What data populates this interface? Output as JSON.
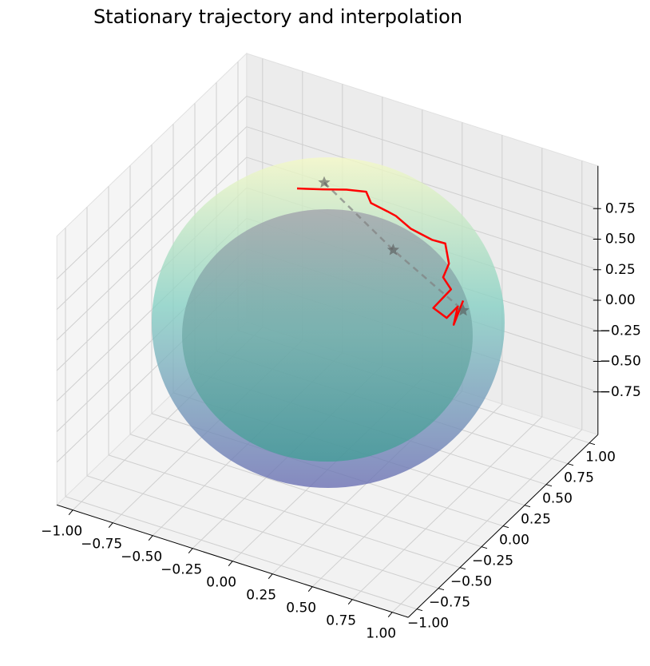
{
  "chart_data": {
    "type": "line3d",
    "title": "Stationary trajectory and interpolation",
    "xlim": [
      -1.1,
      1.1
    ],
    "ylim": [
      -1.1,
      1.1
    ],
    "zlim": [
      -1.1,
      1.1
    ],
    "xticks": [
      {
        "value": -1,
        "label": "−1.00"
      },
      {
        "value": -0.75,
        "label": "−0.75"
      },
      {
        "value": -0.5,
        "label": "−0.50"
      },
      {
        "value": -0.25,
        "label": "−0.25"
      },
      {
        "value": 0,
        "label": "0.00"
      },
      {
        "value": 0.25,
        "label": "0.25"
      },
      {
        "value": 0.5,
        "label": "0.50"
      },
      {
        "value": 0.75,
        "label": "0.75"
      },
      {
        "value": 1,
        "label": "1.00"
      }
    ],
    "yticks": [
      {
        "value": -1,
        "label": "−1.00"
      },
      {
        "value": -0.75,
        "label": "−0.75"
      },
      {
        "value": -0.5,
        "label": "−0.50"
      },
      {
        "value": -0.25,
        "label": "−0.25"
      },
      {
        "value": 0,
        "label": "0.00"
      },
      {
        "value": 0.25,
        "label": "0.25"
      },
      {
        "value": 0.5,
        "label": "0.50"
      },
      {
        "value": 0.75,
        "label": "0.75"
      },
      {
        "value": 1,
        "label": "1.00"
      }
    ],
    "zticks": [
      {
        "value": -0.75,
        "label": "−0.75"
      },
      {
        "value": -0.5,
        "label": "−0.50"
      },
      {
        "value": -0.25,
        "label": "−0.25"
      },
      {
        "value": 0,
        "label": "0.00"
      },
      {
        "value": 0.25,
        "label": "0.25"
      },
      {
        "value": 0.5,
        "label": "0.50"
      },
      {
        "value": 0.75,
        "label": "0.75"
      }
    ],
    "grid": true,
    "trajectory": {
      "color": "#ff0000",
      "x": [
        -0.46,
        -0.3,
        -0.15,
        0.0,
        0.03,
        0.16,
        0.24,
        0.36,
        0.52,
        0.63,
        0.68,
        0.66,
        0.72,
        0.62,
        0.72,
        0.8,
        0.78,
        0.85
      ],
      "y": [
        0.5,
        0.5,
        0.5,
        0.45,
        0.45,
        0.4,
        0.35,
        0.3,
        0.25,
        0.2,
        0.15,
        0.12,
        0.1,
        0.08,
        0.05,
        0.03,
        0.02,
        0
      ],
      "z": [
        0.67,
        0.73,
        0.79,
        0.87,
        0.79,
        0.81,
        0.84,
        0.82,
        0.83,
        0.88,
        0.77,
        0.67,
        0.61,
        0.43,
        0.41,
        0.55,
        0.4,
        0.64
      ]
    },
    "interpolation": {
      "color": "#808080",
      "x": [
        -0.29,
        0.25,
        0.85
      ],
      "y": [
        0.5,
        0.3,
        0
      ],
      "z": [
        0.79,
        0.6,
        0.56
      ]
    }
  }
}
